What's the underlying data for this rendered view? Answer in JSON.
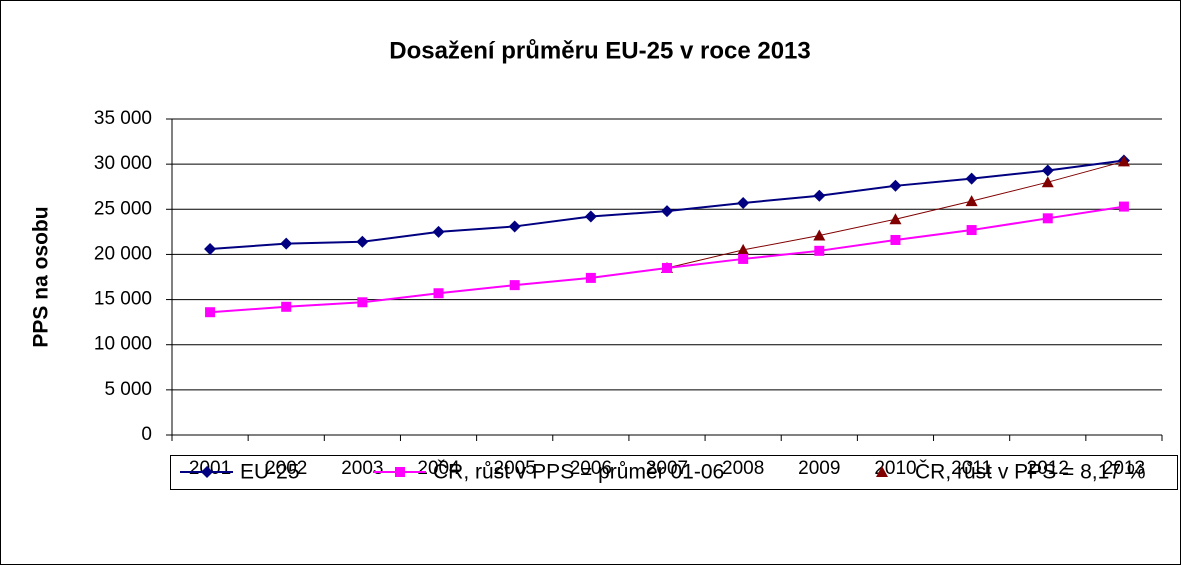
{
  "chart_data": {
    "type": "line",
    "title": "Dosažení průměru EU-25 v roce 2013",
    "y_label": "PPS na osobu",
    "categories": [
      "2001",
      "2002",
      "2003",
      "2004",
      "2005",
      "2006",
      "2007",
      "2008",
      "2009",
      "2010",
      "2011",
      "2012",
      "2013"
    ],
    "series": [
      {
        "name": "EU-25",
        "color": "#000080",
        "marker": "diamond",
        "values": [
          20600,
          21200,
          21400,
          22500,
          23100,
          24200,
          24800,
          25700,
          26500,
          27600,
          28400,
          29300,
          30400
        ]
      },
      {
        "name": "ČR, růst v PPS = průměr 01-06",
        "color": "#ff00ff",
        "marker": "square",
        "values": [
          13600,
          14200,
          14700,
          15700,
          16600,
          17400,
          18500,
          19500,
          20400,
          21600,
          22700,
          24000,
          25300
        ]
      },
      {
        "name": "ČR, růst v PPS = 8,17 %",
        "color": "#800000",
        "marker": "triangle",
        "values": [
          null,
          null,
          null,
          null,
          null,
          null,
          18500,
          20500,
          22100,
          23900,
          25900,
          28000,
          30300
        ]
      }
    ],
    "ylim": [
      0,
      35000
    ],
    "yticks": [
      0,
      {
        "value": 5000,
        "label": "5 000"
      },
      {
        "value": 10000,
        "label": "10 000"
      },
      {
        "value": 15000,
        "label": "15 000"
      },
      {
        "value": 20000,
        "label": "20 000"
      },
      {
        "value": 25000,
        "label": "25 000"
      },
      {
        "value": 30000,
        "label": "30 000"
      },
      {
        "value": 35000,
        "label": "35 000"
      }
    ],
    "grid": true,
    "legend": "bottom"
  }
}
